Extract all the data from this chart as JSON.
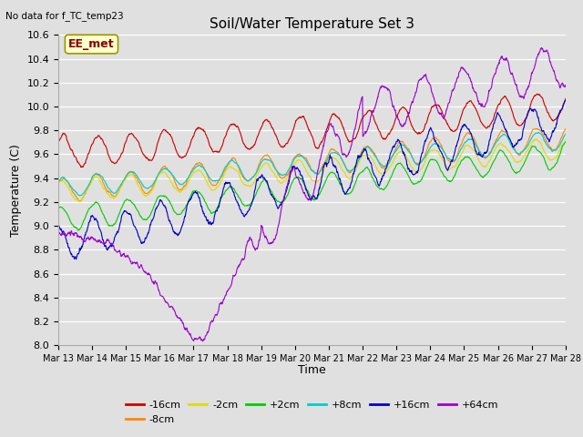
{
  "title": "Soil/Water Temperature Set 3",
  "xlabel": "Time",
  "ylabel": "Temperature (C)",
  "no_data_label": "No data for f_TC_temp23",
  "annotation": "EE_met",
  "ylim": [
    8.0,
    10.6
  ],
  "x_tick_labels": [
    "Mar 13",
    "Mar 14",
    "Mar 15",
    "Mar 16",
    "Mar 17",
    "Mar 18",
    "Mar 19",
    "Mar 20",
    "Mar 21",
    "Mar 22",
    "Mar 23",
    "Mar 24",
    "Mar 25",
    "Mar 26",
    "Mar 27",
    "Mar 28"
  ],
  "series": [
    {
      "label": "-16cm",
      "color": "#cc0000"
    },
    {
      "label": "-8cm",
      "color": "#ff8800"
    },
    {
      "label": "-2cm",
      "color": "#dddd00"
    },
    {
      "label": "+2cm",
      "color": "#00cc00"
    },
    {
      "label": "+8cm",
      "color": "#00cccc"
    },
    {
      "label": "+16cm",
      "color": "#0000cc"
    },
    {
      "label": "+64cm",
      "color": "#9900cc"
    }
  ],
  "bg_color": "#e0e0e0",
  "grid_color": "#ffffff",
  "title_fontsize": 11,
  "axis_fontsize": 8,
  "ylabel_fontsize": 9
}
